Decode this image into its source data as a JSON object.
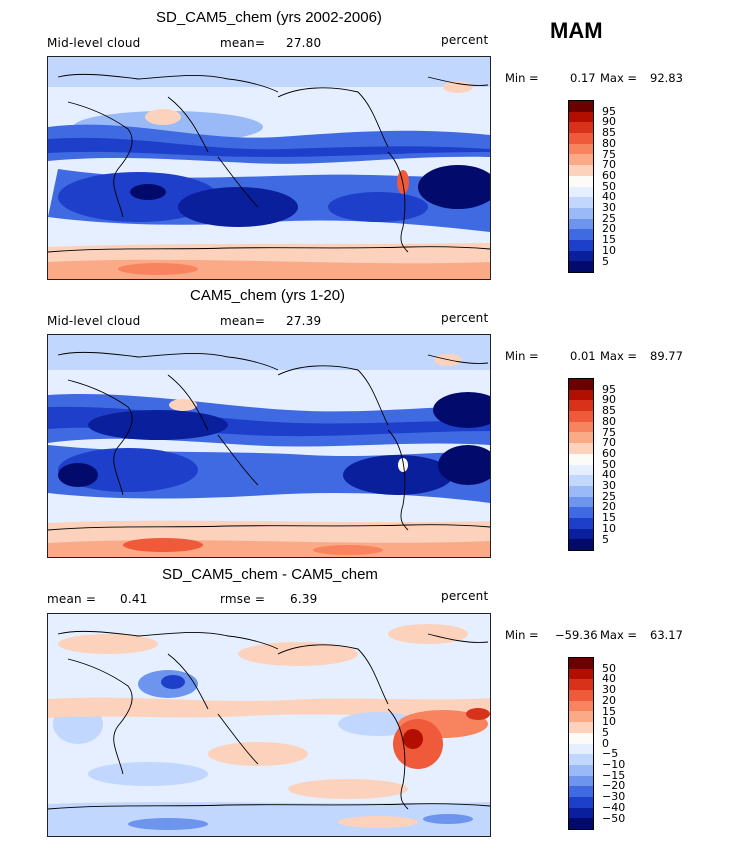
{
  "season": "MAM",
  "panels": [
    {
      "title": "SD_CAM5_chem (yrs 2002-2006)",
      "left_label": "Mid-level cloud",
      "center_label": "mean=",
      "center_value": "27.80",
      "right_label": "percent",
      "min_label": "Min =",
      "min_value": "0.17",
      "max_label": "Max =",
      "max_value": "92.83",
      "kind": "abs"
    },
    {
      "title": "CAM5_chem (yrs 1-20)",
      "left_label": "Mid-level cloud",
      "center_label": "mean=",
      "center_value": "27.39",
      "right_label": "percent",
      "min_label": "Min =",
      "min_value": "0.01",
      "max_label": "Max =",
      "max_value": "89.77",
      "kind": "abs"
    },
    {
      "title": "SD_CAM5_chem - CAM5_chem",
      "left_label": "mean =",
      "left_value": "0.41",
      "center_label": "rmse =",
      "center_value": "6.39",
      "right_label": "percent",
      "min_label": "Min =",
      "min_value": "−59.36",
      "max_label": "Max =",
      "max_value": "63.17",
      "kind": "diff"
    }
  ],
  "colorbars": {
    "abs_levels": [
      "95",
      "90",
      "85",
      "80",
      "75",
      "70",
      "60",
      "50",
      "40",
      "30",
      "25",
      "20",
      "15",
      "10",
      "5"
    ],
    "diff_levels": [
      "50",
      "40",
      "30",
      "20",
      "15",
      "10",
      "5",
      "0",
      "−5",
      "−10",
      "−15",
      "−20",
      "−30",
      "−40",
      "−50"
    ],
    "colors": [
      "#6b0000",
      "#b30f00",
      "#d8321a",
      "#ef5a3a",
      "#f7845f",
      "#fbaa88",
      "#fdd2bc",
      "#fdfbf8",
      "#e5efff",
      "#c1d7fd",
      "#99baf7",
      "#6d95ee",
      "#3f6ae2",
      "#1d3fc9",
      "#0a1f9c",
      "#020a6b"
    ]
  }
}
